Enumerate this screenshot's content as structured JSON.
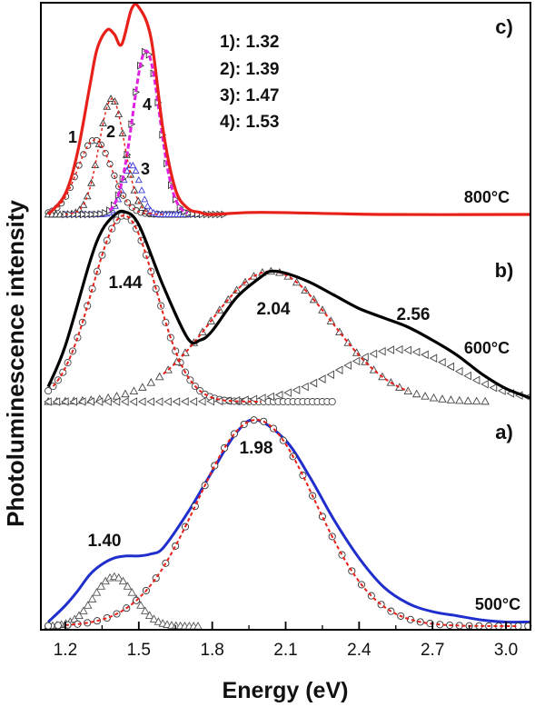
{
  "chart_data": {
    "type": "line",
    "xlabel": "Energy (eV)",
    "ylabel": "Photoluminescence intensity",
    "xlim": [
      1.1,
      3.1
    ],
    "xticks": [
      1.2,
      1.5,
      1.8,
      2.1,
      2.4,
      2.7,
      3.0
    ],
    "xtick_labels": [
      "1.2",
      "1.5",
      "1.8",
      "2.1",
      "2.4",
      "2.7",
      "3.0"
    ],
    "y_ticks_shown": false,
    "grid": false,
    "panels": [
      {
        "id": "a",
        "panel_label": "a)",
        "temperature": "500°C",
        "measured_color": "#1f2ecc",
        "fit_color": "#e8201a",
        "series": [
          {
            "role": "measured",
            "x": [
              1.13,
              1.2,
              1.25,
              1.3,
              1.35,
              1.4,
              1.45,
              1.5,
              1.55,
              1.6,
              1.7,
              1.8,
              1.9,
              1.98,
              2.1,
              2.2,
              2.3,
              2.4,
              2.5,
              2.6,
              2.7,
              2.8,
              2.9,
              3.0,
              3.1
            ],
            "y": [
              0.02,
              0.1,
              0.17,
              0.25,
              0.3,
              0.33,
              0.34,
              0.34,
              0.35,
              0.38,
              0.55,
              0.75,
              0.94,
              1.0,
              0.9,
              0.72,
              0.51,
              0.33,
              0.19,
              0.11,
              0.07,
              0.05,
              0.03,
              0.02,
              0.02
            ]
          },
          {
            "role": "fit",
            "peak": 1.98,
            "sigma": 0.24,
            "amplitude": 1.0
          },
          {
            "role": "component",
            "peak": 1.4,
            "sigma": 0.082,
            "amplitude": 0.24,
            "x_range": [
              1.13,
              1.75
            ]
          }
        ],
        "peak_labels": [
          "1.40",
          "1.98"
        ]
      },
      {
        "id": "b",
        "panel_label": "b)",
        "temperature": "600°C",
        "measured_color": "#000000",
        "fit_color": "#e8201a",
        "series": [
          {
            "role": "measured",
            "x": [
              1.13,
              1.2,
              1.3,
              1.35,
              1.4,
              1.44,
              1.5,
              1.6,
              1.7,
              1.75,
              1.8,
              1.9,
              2.0,
              2.04,
              2.1,
              2.2,
              2.3,
              2.4,
              2.5,
              2.6,
              2.7,
              2.8,
              2.9,
              3.0,
              3.1
            ],
            "y": [
              0.08,
              0.3,
              0.75,
              0.92,
              1.0,
              1.02,
              0.95,
              0.62,
              0.34,
              0.33,
              0.38,
              0.56,
              0.67,
              0.7,
              0.69,
              0.64,
              0.57,
              0.5,
              0.45,
              0.4,
              0.33,
              0.25,
              0.15,
              0.07,
              0.02
            ]
          },
          {
            "role": "component",
            "peak": 1.44,
            "sigma": 0.13,
            "amplitude": 1.0,
            "x_range": [
              1.13,
              2.3
            ]
          },
          {
            "role": "component",
            "peak": 2.04,
            "sigma": 0.25,
            "amplitude": 0.7,
            "x_range": [
              1.13,
              2.93
            ]
          },
          {
            "role": "component",
            "peak": 2.56,
            "sigma": 0.24,
            "amplitude": 0.28,
            "x_range": [
              1.13,
              3.1
            ]
          }
        ],
        "peak_labels": [
          "1.44",
          "2.04",
          "2.56"
        ]
      },
      {
        "id": "c",
        "panel_label": "c)",
        "temperature": "800°C",
        "measured_color": "#e8201a",
        "fit_color": "#e020e0",
        "series": [
          {
            "role": "measured",
            "x": [
              1.13,
              1.2,
              1.25,
              1.3,
              1.33,
              1.37,
              1.4,
              1.43,
              1.47,
              1.5,
              1.55,
              1.6,
              1.65,
              1.7,
              1.75,
              1.8,
              2.0,
              2.5,
              3.1
            ],
            "y": [
              0.0,
              0.1,
              0.3,
              0.62,
              0.8,
              0.89,
              0.87,
              0.82,
              0.99,
              1.0,
              0.85,
              0.4,
              0.12,
              0.03,
              0.01,
              0.0,
              0.01,
              0.0,
              0.0
            ]
          },
          {
            "role": "component",
            "number": "1",
            "peak": 1.32,
            "sigma": 0.07,
            "amplitude": 0.36,
            "x_range": [
              1.13,
              1.7
            ]
          },
          {
            "role": "component",
            "number": "2",
            "peak": 1.39,
            "sigma": 0.052,
            "amplitude": 0.56,
            "x_range": [
              1.13,
              1.7
            ]
          },
          {
            "role": "component",
            "number": "3",
            "peak": 1.47,
            "sigma": 0.035,
            "amplitude": 0.24,
            "x_range": [
              1.2,
              1.75
            ]
          },
          {
            "role": "component",
            "number": "4",
            "peak": 1.53,
            "sigma": 0.055,
            "amplitude": 0.79,
            "x_range": [
              1.2,
              1.85
            ]
          }
        ],
        "peak_labels": [
          "1",
          "2",
          "3",
          "4"
        ],
        "legend_lines": [
          "1): 1.32",
          "2): 1.39",
          "3): 1.47",
          "4): 1.53"
        ]
      }
    ]
  }
}
